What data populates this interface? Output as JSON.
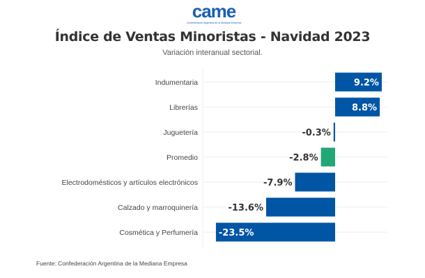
{
  "logo": {
    "text": "came",
    "tagline": "Confederación Argentina de la Mediana Empresa"
  },
  "chart_data": {
    "type": "bar",
    "orientation": "horizontal",
    "title": "Índice de Ventas Minoristas - Navidad 2023",
    "subtitle": "Variación interanual sectorial.",
    "categories": [
      "Indumentaria",
      "Librerías",
      "Juguetería",
      "Promedio",
      "Electrodomésticos y artículos electrónicos",
      "Calzado y marroquinería",
      "Cosmética y Perfumería"
    ],
    "values": [
      9.2,
      8.8,
      -0.3,
      -2.8,
      -7.9,
      -13.6,
      -23.5
    ],
    "labels": [
      "9.2%",
      "8.8%",
      "-0.3%",
      "-2.8%",
      "-7.9%",
      "-13.6%",
      "-23.5%"
    ],
    "colors": [
      "#0055a5",
      "#0055a5",
      "#0055a5",
      "#22a877",
      "#0055a5",
      "#0055a5",
      "#0055a5"
    ],
    "xlim": [
      -26,
      10
    ],
    "grid": true
  },
  "source": "Fuente: Confederación Argentina de la Mediana Empresa"
}
